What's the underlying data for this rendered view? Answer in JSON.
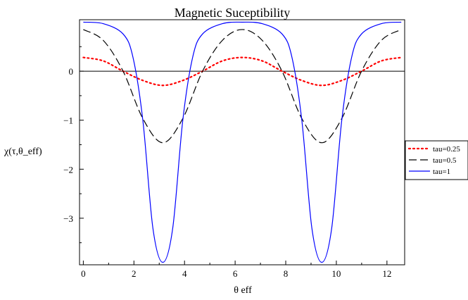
{
  "chart_data": {
    "type": "line",
    "title": "Magnetic Suceptibility",
    "xlabel": "θ  eff",
    "ylabel": "χ(τ,θ_eff)",
    "xlim": [
      -0.15,
      12.7
    ],
    "ylim": [
      -3.95,
      1.05
    ],
    "x_ticks": [
      0,
      2,
      4,
      6,
      8,
      10,
      12
    ],
    "x_tick_labels": [
      "0",
      "2",
      "4",
      "6",
      "8",
      "10",
      "12"
    ],
    "y_ticks": [
      0,
      -1,
      -2,
      -3
    ],
    "y_tick_labels": [
      "0",
      "−1",
      "−2",
      "−3"
    ],
    "grid": false,
    "zero_line": true,
    "legend_position": "right",
    "series": [
      {
        "name": "tau=0.25",
        "color": "#ff0000",
        "style": "dotted",
        "x": [
          0,
          0.7854,
          1.5708,
          2.3562,
          3.1416,
          3.927,
          4.7124,
          5.4978,
          6.2832,
          7.0686,
          7.854,
          8.6394,
          9.4248,
          10.2102,
          10.9956,
          11.781,
          12.5664
        ],
        "y": [
          0.28,
          0.21,
          0.0,
          -0.19,
          -0.29,
          -0.19,
          0.0,
          0.21,
          0.28,
          0.21,
          0.0,
          -0.19,
          -0.29,
          -0.19,
          0.0,
          0.21,
          0.28
        ]
      },
      {
        "name": "tau=0.5",
        "color": "#000000",
        "style": "dashed",
        "x": [
          0,
          0.7854,
          1.5708,
          2.3562,
          3.1416,
          3.927,
          4.7124,
          5.4978,
          6.2832,
          7.0686,
          7.854,
          8.6394,
          9.4248,
          10.2102,
          10.9956,
          11.781,
          12.5664
        ],
        "y": [
          0.85,
          0.63,
          0.0,
          -0.97,
          -1.46,
          -0.97,
          0.0,
          0.63,
          0.85,
          0.63,
          0.0,
          -0.97,
          -1.46,
          -0.97,
          0.0,
          0.63,
          0.85
        ]
      },
      {
        "name": "tau=1",
        "color": "#0000ff",
        "style": "solid",
        "x": [
          0,
          0.7854,
          1.5708,
          1.9635,
          2.3562,
          2.7489,
          3.1416,
          3.5343,
          3.927,
          4.3197,
          4.7124,
          5.4978,
          6.2832,
          7.0686,
          7.854,
          8.2467,
          8.6394,
          9.0321,
          9.4248,
          9.8175,
          10.2102,
          10.6029,
          10.9956,
          11.781,
          12.5664
        ],
        "y": [
          1.0,
          0.97,
          0.76,
          0.28,
          -1.02,
          -3.2,
          -3.9,
          -3.2,
          -1.02,
          0.28,
          0.76,
          0.97,
          1.0,
          0.97,
          0.76,
          0.28,
          -1.02,
          -3.2,
          -3.9,
          -3.2,
          -1.02,
          0.28,
          0.76,
          0.97,
          1.0
        ]
      }
    ]
  }
}
